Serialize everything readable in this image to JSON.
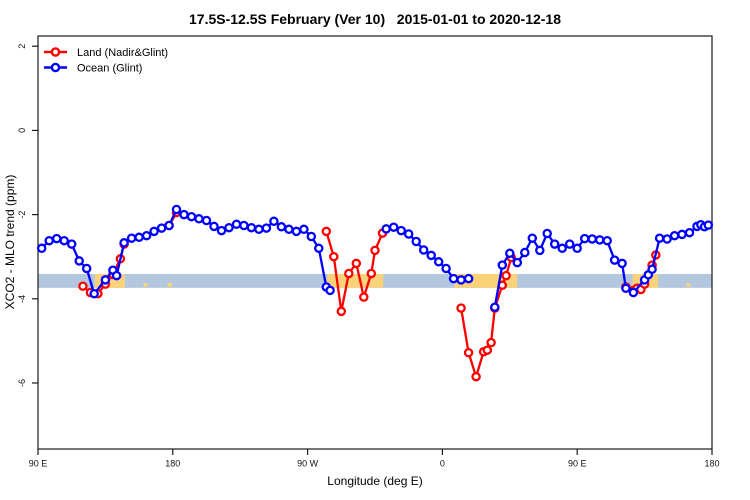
{
  "chart_data": {
    "type": "line",
    "title": "17.5S-12.5S February (Ver 10)   2015-01-01 to 2020-12-18",
    "xlabel": "Longitude (deg E)",
    "ylabel": "XCO2 - MLO trend (ppm)",
    "x_axis": {
      "note": "longitude in degrees east, unwrapped eastward from 90E (90..540 = 90E..180..90W..0..90E..180)",
      "range": [
        90,
        540
      ],
      "ticks": [
        90,
        180,
        270,
        360,
        450,
        540
      ],
      "tick_labels": [
        "90 E",
        "180",
        "90 W",
        "0",
        "90 E",
        "180"
      ]
    },
    "y_axis": {
      "range": [
        -7.55,
        2.25
      ],
      "ticks": [
        2,
        0,
        -2,
        -4,
        -6
      ],
      "tick_labels": [
        "2",
        "0",
        "-2",
        "-4",
        "-6"
      ]
    },
    "grid": false,
    "legend_position": "top-left-inside",
    "bands": {
      "ocean_band": {
        "label": "ocean-coverage-band",
        "color": "#B4C7E0",
        "y_range": [
          -3.41,
          -3.74
        ],
        "x_range": [
          90,
          540
        ]
      },
      "land_band_color": "#FAD27A",
      "land_segments": [
        [
          128,
          148
        ],
        [
          283,
          320.5
        ],
        [
          368,
          410
        ],
        [
          487,
          504
        ]
      ],
      "land_minor_marks": [
        [
          160.5,
          163
        ],
        [
          176.5,
          179.5
        ],
        [
          523,
          525.5
        ]
      ]
    },
    "series": [
      {
        "name": "Land (Nadir&Glint)",
        "color": "#FF0000",
        "segments": [
          [
            [
              120,
              -3.7
            ],
            [
              125,
              -3.85
            ],
            [
              130,
              -3.88
            ],
            [
              135,
              -3.65
            ],
            [
              140,
              -3.42
            ],
            [
              145,
              -3.05
            ],
            [
              147.5,
              -2.7
            ]
          ],
          [
            [
              177.5,
              -2.26
            ],
            [
              182.5,
              -1.95
            ]
          ],
          [
            [
              282.5,
              -2.4
            ],
            [
              287.5,
              -3.0
            ],
            [
              292.5,
              -4.3
            ],
            [
              297.5,
              -3.4
            ],
            [
              302.5,
              -3.16
            ],
            [
              307.5,
              -3.96
            ],
            [
              312.5,
              -3.4
            ],
            [
              315,
              -2.85
            ],
            [
              320,
              -2.44
            ]
          ],
          [
            [
              372.5,
              -4.22
            ],
            [
              377.5,
              -5.28
            ],
            [
              382.5,
              -5.85
            ],
            [
              387.5,
              -5.26
            ],
            [
              390,
              -5.22
            ],
            [
              392.5,
              -5.04
            ],
            [
              395,
              -4.22
            ],
            [
              400,
              -3.68
            ],
            [
              402.5,
              -3.45
            ],
            [
              406,
              -3.02
            ]
          ],
          [
            [
              482.5,
              -3.72
            ],
            [
              487.5,
              -3.8
            ],
            [
              490,
              -3.75
            ],
            [
              492.5,
              -3.78
            ],
            [
              495,
              -3.65
            ],
            [
              500,
              -3.2
            ],
            [
              502.5,
              -2.96
            ]
          ]
        ]
      },
      {
        "name": "Ocean (Glint)",
        "color": "#0000FF",
        "segments": [
          [
            [
              92.5,
              -2.8
            ],
            [
              97.5,
              -2.62
            ],
            [
              102.5,
              -2.57
            ],
            [
              107.5,
              -2.62
            ],
            [
              112.5,
              -2.7
            ],
            [
              117.5,
              -3.1
            ],
            [
              122.5,
              -3.28
            ],
            [
              127.5,
              -3.88
            ],
            [
              135,
              -3.55
            ],
            [
              140,
              -3.32
            ],
            [
              142.5,
              -3.45
            ],
            [
              147.5,
              -2.67
            ],
            [
              152.5,
              -2.56
            ],
            [
              157.5,
              -2.54
            ],
            [
              162.5,
              -2.5
            ],
            [
              167.5,
              -2.4
            ],
            [
              172.5,
              -2.32
            ],
            [
              177.5,
              -2.26
            ],
            [
              182.5,
              -1.88
            ],
            [
              187.5,
              -2.0
            ],
            [
              192.5,
              -2.05
            ],
            [
              197.5,
              -2.1
            ],
            [
              202.5,
              -2.14
            ],
            [
              207.5,
              -2.28
            ],
            [
              212.5,
              -2.38
            ],
            [
              217.5,
              -2.31
            ],
            [
              222.5,
              -2.23
            ],
            [
              227.5,
              -2.26
            ],
            [
              232.5,
              -2.31
            ],
            [
              237.5,
              -2.35
            ],
            [
              242.5,
              -2.32
            ],
            [
              247.5,
              -2.16
            ],
            [
              252.5,
              -2.29
            ],
            [
              257.5,
              -2.35
            ],
            [
              262.5,
              -2.4
            ],
            [
              267.5,
              -2.35
            ],
            [
              272.5,
              -2.52
            ],
            [
              277.5,
              -2.8
            ],
            [
              282.5,
              -3.72
            ],
            [
              285,
              -3.8
            ]
          ],
          [
            [
              322.5,
              -2.34
            ],
            [
              327.5,
              -2.3
            ],
            [
              332.5,
              -2.38
            ],
            [
              337.5,
              -2.46
            ],
            [
              342.5,
              -2.64
            ],
            [
              347.5,
              -2.84
            ],
            [
              352.5,
              -2.97
            ],
            [
              357.5,
              -3.12
            ],
            [
              362.5,
              -3.28
            ],
            [
              367.5,
              -3.52
            ],
            [
              372.5,
              -3.55
            ],
            [
              377.5,
              -3.52
            ]
          ],
          [
            [
              395,
              -4.2
            ],
            [
              400,
              -3.2
            ],
            [
              405,
              -2.92
            ],
            [
              410,
              -3.14
            ],
            [
              415,
              -2.9
            ],
            [
              420,
              -2.56
            ],
            [
              425,
              -2.85
            ],
            [
              430,
              -2.45
            ],
            [
              435,
              -2.7
            ],
            [
              440,
              -2.8
            ],
            [
              445,
              -2.7
            ],
            [
              450,
              -2.8
            ],
            [
              455,
              -2.57
            ],
            [
              460,
              -2.58
            ],
            [
              465,
              -2.6
            ],
            [
              470,
              -2.62
            ],
            [
              475,
              -3.08
            ],
            [
              480,
              -3.16
            ],
            [
              482.5,
              -3.75
            ],
            [
              487.5,
              -3.85
            ],
            [
              495,
              -3.55
            ],
            [
              497.5,
              -3.43
            ],
            [
              500,
              -3.3
            ],
            [
              505,
              -2.56
            ],
            [
              510,
              -2.58
            ],
            [
              515,
              -2.5
            ],
            [
              520,
              -2.47
            ],
            [
              525,
              -2.43
            ],
            [
              530,
              -2.28
            ],
            [
              532.5,
              -2.24
            ],
            [
              535,
              -2.29
            ],
            [
              537.5,
              -2.25
            ]
          ]
        ]
      }
    ]
  }
}
